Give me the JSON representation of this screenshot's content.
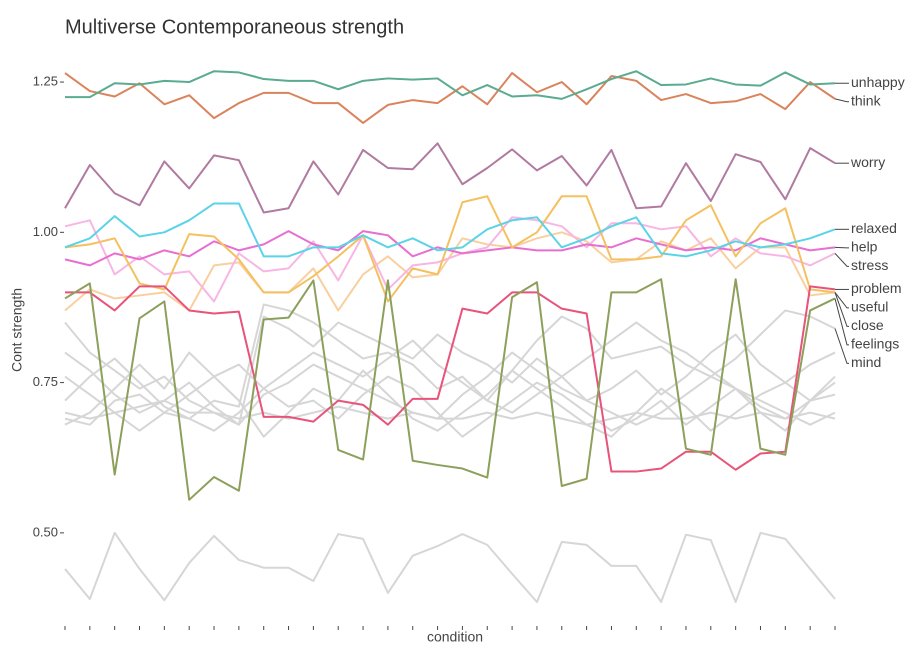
{
  "chart_data": {
    "type": "line",
    "title": "Multiverse Contemporaneous strength",
    "x_label": "condition",
    "y_label": "Cont strength",
    "categories": [
      null,
      null,
      null,
      null,
      null,
      null,
      null,
      null,
      null,
      null,
      null,
      null,
      null,
      null,
      null,
      null,
      null,
      null,
      null,
      null,
      null,
      null,
      null,
      null,
      null,
      null,
      null,
      null,
      null,
      null,
      null,
      null
    ],
    "ylim": [
      0.38,
      1.29
    ],
    "yticks": [
      {
        "value": 0.5,
        "label": "0.50"
      },
      {
        "value": 0.75,
        "label": "0.75"
      },
      {
        "value": 1.0,
        "label": "1.00"
      },
      {
        "value": 1.25,
        "label": "1.25"
      }
    ],
    "grid": false,
    "series": [
      {
        "color": "#d6d6d6",
        "values": [
          0.44,
          0.39,
          0.5,
          0.44,
          0.388,
          0.45,
          0.495,
          0.455,
          0.442,
          0.442,
          0.42,
          0.498,
          0.49,
          0.4,
          0.462,
          0.478,
          0.498,
          0.48,
          0.432,
          0.385,
          0.485,
          0.48,
          0.445,
          0.445,
          0.385,
          0.497,
          0.488,
          0.385,
          0.5,
          0.49,
          0.44,
          0.39
        ]
      },
      {
        "color": "#d6d6d6",
        "values": [
          0.85,
          0.8,
          0.77,
          0.74,
          0.76,
          0.72,
          0.7,
          0.68,
          0.73,
          0.75,
          0.78,
          0.76,
          0.74,
          0.72,
          0.7,
          0.69,
          0.73,
          0.76,
          0.8,
          0.77,
          0.74,
          0.72,
          0.7,
          0.68,
          0.7,
          0.73,
          0.76,
          0.74,
          0.72,
          0.7,
          0.68,
          0.7
        ]
      },
      {
        "color": "#d6d6d6",
        "values": [
          0.72,
          0.76,
          0.79,
          0.75,
          0.71,
          0.69,
          0.67,
          0.7,
          0.74,
          0.77,
          0.8,
          0.78,
          0.76,
          0.79,
          0.82,
          0.78,
          0.75,
          0.72,
          0.7,
          0.73,
          0.76,
          0.79,
          0.82,
          0.85,
          0.82,
          0.8,
          0.77,
          0.74,
          0.71,
          0.69,
          0.72,
          0.75
        ]
      },
      {
        "color": "#d6d6d6",
        "values": [
          0.7,
          0.69,
          0.7,
          0.71,
          0.72,
          0.7,
          0.7,
          0.69,
          0.7,
          0.69,
          0.7,
          0.71,
          0.7,
          0.69,
          0.7,
          0.69,
          0.69,
          0.7,
          0.69,
          0.7,
          0.69,
          0.68,
          0.69,
          0.7,
          0.69,
          0.69,
          0.7,
          0.69,
          0.7,
          0.69,
          0.7,
          0.69
        ]
      },
      {
        "color": "#d6d6d6",
        "values": [
          0.68,
          0.7,
          0.74,
          0.78,
          0.74,
          0.8,
          0.76,
          0.72,
          0.66,
          0.7,
          0.74,
          0.72,
          0.77,
          0.73,
          0.69,
          0.67,
          0.7,
          0.73,
          0.77,
          0.74,
          0.71,
          0.68,
          0.66,
          0.7,
          0.74,
          0.71,
          0.67,
          0.7,
          0.73,
          0.75,
          0.72,
          0.73
        ]
      },
      {
        "color": "#d6d6d6",
        "values": [
          0.8,
          0.77,
          0.73,
          0.7,
          0.72,
          0.75,
          0.71,
          0.68,
          0.86,
          0.84,
          0.81,
          0.85,
          0.83,
          0.81,
          0.79,
          0.83,
          0.8,
          0.78,
          0.75,
          0.79,
          0.76,
          0.72,
          0.74,
          0.77,
          0.73,
          0.76,
          0.8,
          0.83,
          0.78,
          0.75,
          0.78,
          0.8
        ]
      },
      {
        "color": "#d6d6d6",
        "values": [
          0.76,
          0.73,
          0.7,
          0.67,
          0.7,
          0.73,
          0.76,
          0.78,
          0.74,
          0.71,
          0.72,
          0.69,
          0.73,
          0.76,
          0.74,
          0.7,
          0.66,
          0.69,
          0.72,
          0.75,
          0.73,
          0.7,
          0.67,
          0.69,
          0.72,
          0.68,
          0.71,
          0.74,
          0.7,
          0.67,
          0.72,
          0.76
        ]
      },
      {
        "name": "mind",
        "color": "#d6d6d6",
        "values": [
          0.69,
          0.68,
          0.72,
          0.73,
          0.7,
          0.69,
          0.72,
          0.71,
          0.88,
          0.87,
          0.85,
          0.82,
          0.79,
          0.8,
          0.78,
          0.74,
          0.76,
          0.72,
          0.77,
          0.82,
          0.86,
          0.84,
          0.79,
          0.8,
          0.81,
          0.78,
          0.76,
          0.79,
          0.83,
          0.87,
          0.86,
          0.84
        ]
      },
      {
        "name": "useful",
        "color": "#f9cfa0",
        "values": [
          0.87,
          0.905,
          0.89,
          0.895,
          0.9,
          0.87,
          0.945,
          0.95,
          0.9,
          0.9,
          0.94,
          0.87,
          0.93,
          0.96,
          0.925,
          0.93,
          0.99,
          0.98,
          0.975,
          0.99,
          1.0,
          0.985,
          0.95,
          0.955,
          0.985,
          0.97,
          0.99,
          0.94,
          0.975,
          0.975,
          0.895,
          0.9
        ]
      },
      {
        "name": "stress",
        "color": "#f7b6e3",
        "values": [
          1.01,
          1.02,
          0.93,
          0.96,
          0.93,
          0.935,
          0.885,
          0.965,
          0.935,
          0.94,
          0.985,
          0.92,
          0.995,
          0.905,
          0.945,
          0.95,
          0.965,
          0.975,
          1.025,
          1.02,
          1.01,
          0.975,
          1.015,
          1.015,
          1.005,
          1.01,
          0.96,
          0.99,
          0.965,
          0.96,
          0.945,
          0.965
        ]
      },
      {
        "name": "help",
        "color": "#e86fd0",
        "values": [
          0.955,
          0.945,
          0.965,
          0.955,
          0.97,
          0.96,
          0.985,
          0.97,
          0.98,
          1.002,
          0.98,
          0.97,
          1.002,
          0.995,
          0.96,
          0.975,
          0.965,
          0.97,
          0.975,
          0.97,
          0.97,
          0.98,
          0.975,
          0.99,
          0.98,
          0.97,
          0.975,
          0.97,
          0.99,
          0.98,
          0.97,
          0.975
        ]
      },
      {
        "name": "close",
        "color": "#f5c060",
        "values": [
          0.975,
          0.98,
          0.99,
          0.915,
          0.905,
          0.997,
          0.993,
          0.955,
          0.9,
          0.9,
          0.927,
          0.96,
          0.995,
          0.885,
          0.94,
          0.93,
          1.05,
          1.06,
          0.975,
          1.0,
          1.06,
          1.06,
          0.955,
          0.955,
          0.96,
          1.02,
          1.045,
          0.96,
          1.015,
          1.04,
          0.905,
          0.9
        ]
      },
      {
        "name": "relaxed",
        "color": "#5bd3e8",
        "values": [
          0.975,
          0.99,
          1.027,
          0.993,
          1.0,
          1.02,
          1.048,
          1.048,
          0.96,
          0.96,
          0.975,
          0.975,
          0.995,
          0.975,
          0.99,
          0.97,
          0.975,
          1.005,
          1.02,
          1.025,
          0.975,
          0.99,
          1.01,
          1.025,
          0.965,
          0.96,
          0.97,
          0.985,
          0.975,
          0.98,
          0.99,
          1.005
        ]
      },
      {
        "name": "problem",
        "color": "#e8537a",
        "values": [
          0.9,
          0.9,
          0.87,
          0.91,
          0.91,
          0.87,
          0.865,
          0.868,
          0.693,
          0.693,
          0.685,
          0.72,
          0.713,
          0.68,
          0.723,
          0.723,
          0.873,
          0.865,
          0.9,
          0.9,
          0.873,
          0.865,
          0.602,
          0.602,
          0.607,
          0.635,
          0.635,
          0.605,
          0.632,
          0.635,
          0.91,
          0.905
        ]
      },
      {
        "name": "feelings",
        "color": "#8ca05c",
        "values": [
          0.89,
          0.915,
          0.597,
          0.857,
          0.885,
          0.555,
          0.593,
          0.57,
          0.855,
          0.858,
          0.92,
          0.638,
          0.622,
          0.92,
          0.62,
          0.613,
          0.607,
          0.592,
          0.892,
          0.917,
          0.578,
          0.59,
          0.9,
          0.9,
          0.922,
          0.64,
          0.63,
          0.922,
          0.64,
          0.63,
          0.87,
          0.89
        ]
      },
      {
        "name": "worry",
        "color": "#b07aa1",
        "values": [
          1.04,
          1.112,
          1.065,
          1.045,
          1.118,
          1.073,
          1.128,
          1.12,
          1.033,
          1.04,
          1.118,
          1.063,
          1.137,
          1.107,
          1.105,
          1.148,
          1.08,
          1.107,
          1.138,
          1.103,
          1.127,
          1.078,
          1.137,
          1.04,
          1.043,
          1.115,
          1.052,
          1.13,
          1.117,
          1.055,
          1.14,
          1.115
        ]
      },
      {
        "name": "think",
        "color": "#d9845c",
        "values": [
          1.265,
          1.235,
          1.226,
          1.248,
          1.213,
          1.228,
          1.19,
          1.215,
          1.232,
          1.232,
          1.215,
          1.215,
          1.182,
          1.212,
          1.22,
          1.215,
          1.243,
          1.213,
          1.265,
          1.233,
          1.25,
          1.213,
          1.26,
          1.252,
          1.22,
          1.23,
          1.215,
          1.218,
          1.23,
          1.205,
          1.25,
          1.222
        ]
      },
      {
        "name": "unhappy",
        "color": "#5aab8f",
        "values": [
          1.225,
          1.225,
          1.248,
          1.246,
          1.252,
          1.25,
          1.268,
          1.266,
          1.255,
          1.252,
          1.252,
          1.238,
          1.252,
          1.256,
          1.254,
          1.256,
          1.228,
          1.245,
          1.226,
          1.228,
          1.222,
          1.238,
          1.255,
          1.268,
          1.245,
          1.246,
          1.256,
          1.246,
          1.244,
          1.266,
          1.246,
          1.248
        ]
      }
    ]
  }
}
